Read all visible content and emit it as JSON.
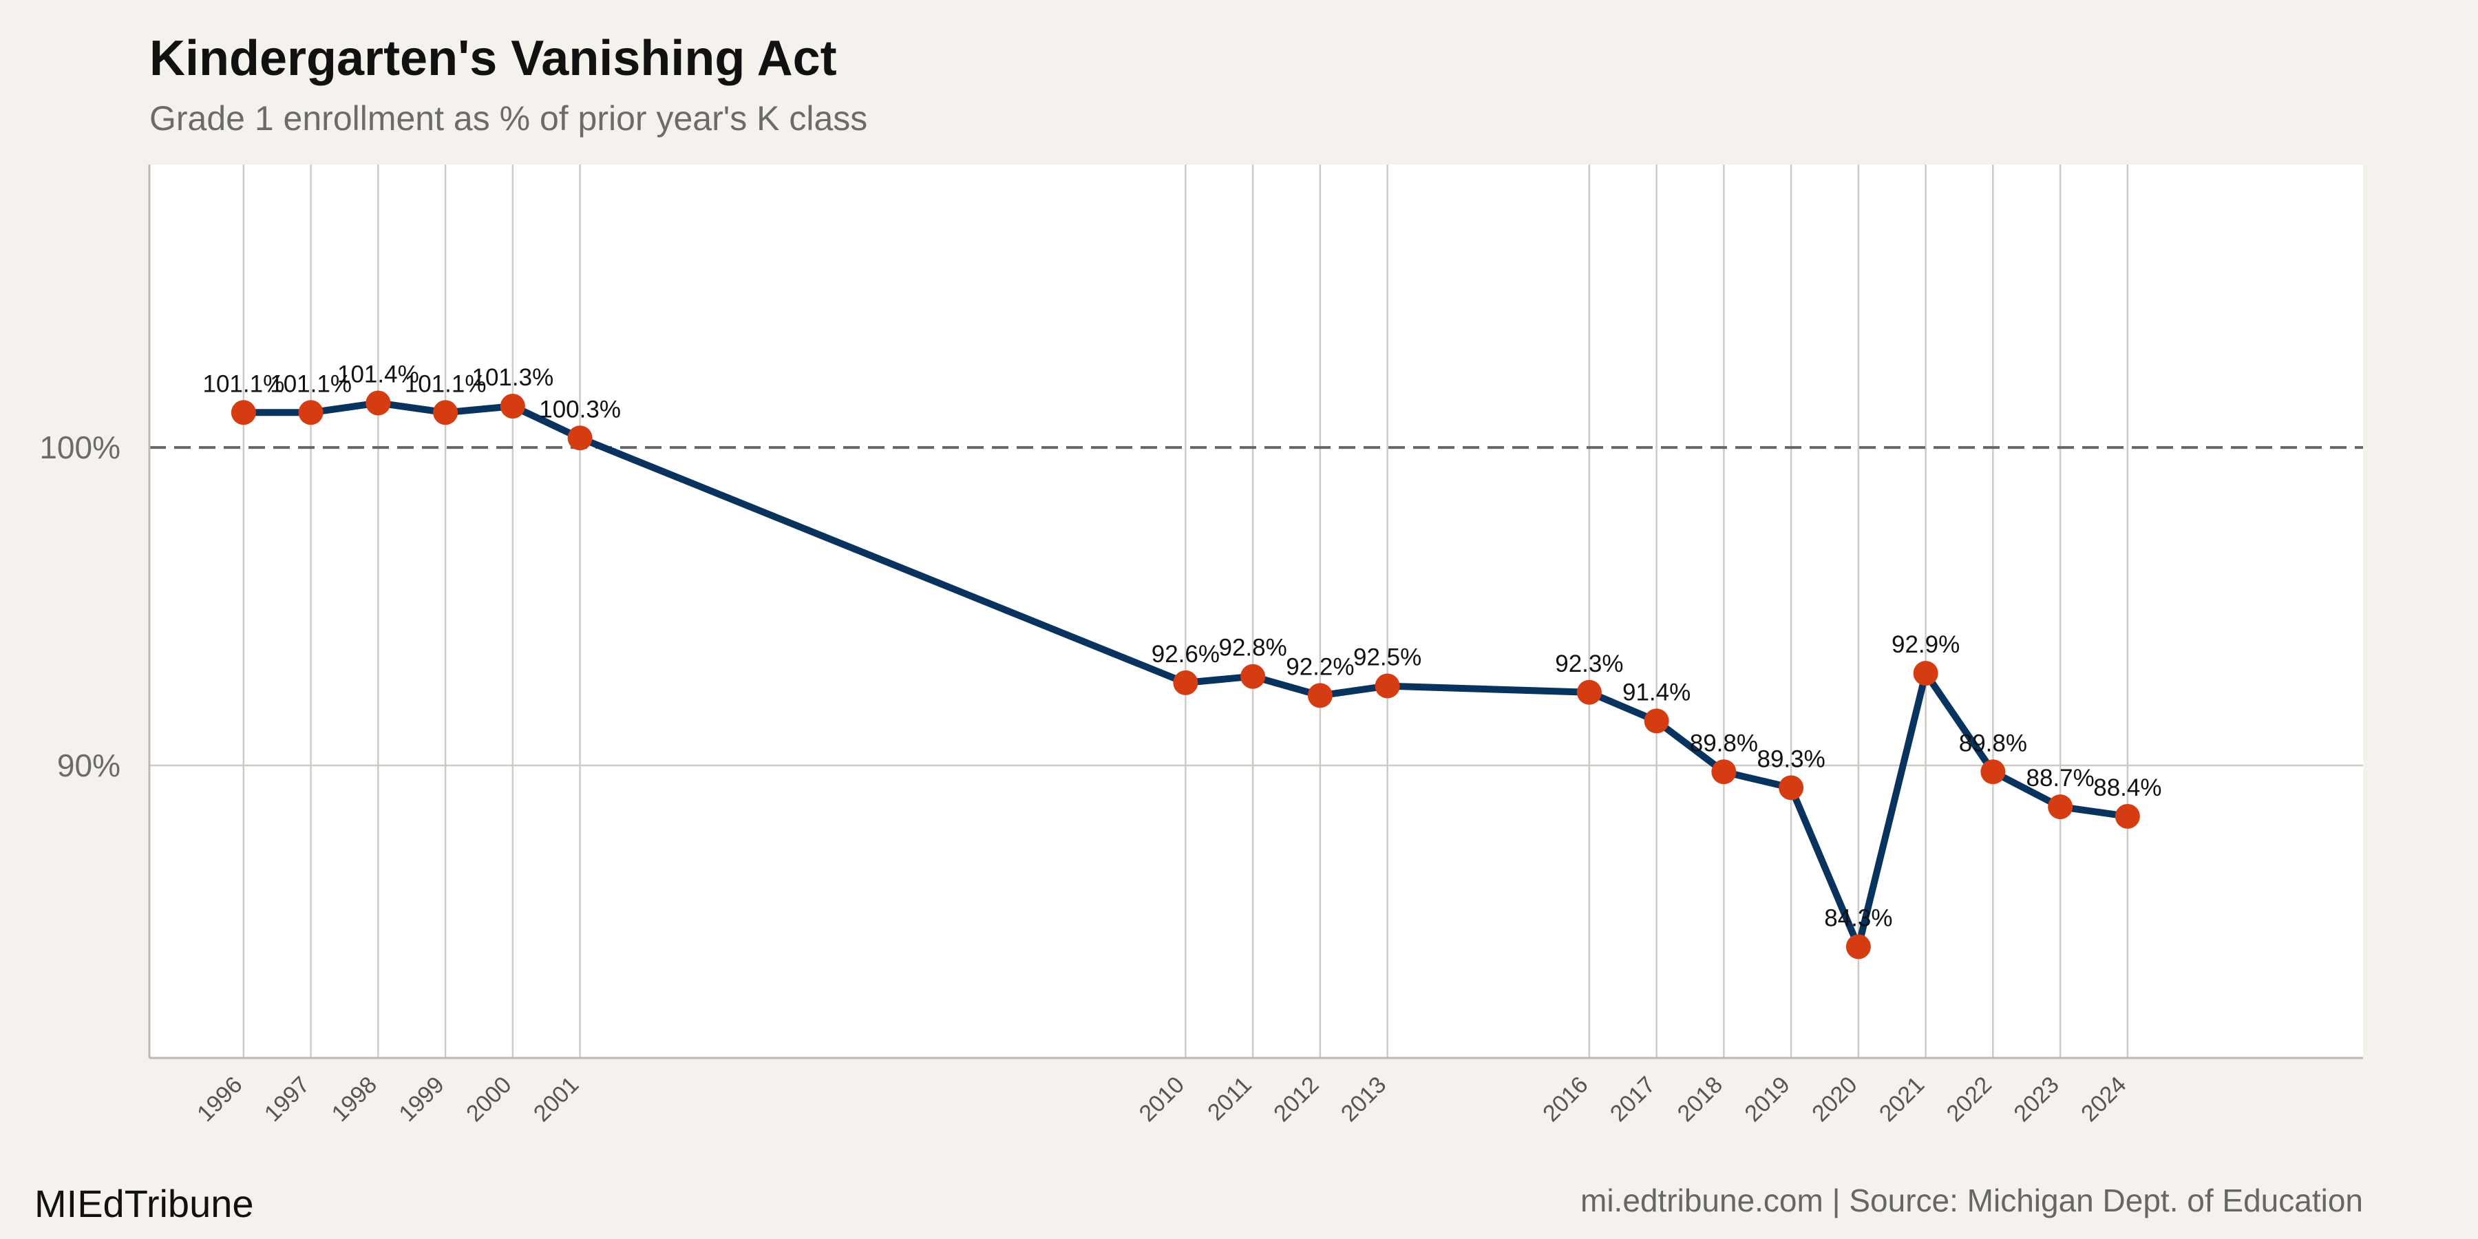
{
  "chart_data": {
    "type": "line",
    "title": "Kindergarten's Vanishing Act",
    "subtitle": "Grade 1 enrollment as % of prior year's K class",
    "xlabel": "",
    "ylabel": "",
    "x": [
      1996,
      1997,
      1998,
      1999,
      2000,
      2001,
      2010,
      2011,
      2012,
      2013,
      2016,
      2017,
      2018,
      2019,
      2020,
      2021,
      2022,
      2023,
      2024
    ],
    "x_tick_labels": [
      "1996",
      "1997",
      "1998",
      "1999",
      "2000",
      "2001",
      "2010",
      "2011",
      "2012",
      "2013",
      "2016",
      "2017",
      "2018",
      "2019",
      "2020",
      "2021",
      "2022",
      "2023",
      "2024"
    ],
    "series": [
      {
        "values": [
          101.1,
          101.1,
          101.4,
          101.1,
          101.3,
          100.3,
          92.6,
          92.8,
          92.2,
          92.5,
          92.3,
          91.4,
          89.8,
          89.3,
          84.3,
          92.9,
          89.8,
          88.7,
          88.4
        ],
        "labels": [
          "101.1%",
          "101.1%",
          "101.4%",
          "101.1%",
          "101.3%",
          "100.3%",
          "92.6%",
          "92.8%",
          "92.2%",
          "92.5%",
          "92.3%",
          "91.4%",
          "89.8%",
          "89.3%",
          "84.3%",
          "92.9%",
          "89.8%",
          "88.7%",
          "88.4%"
        ]
      }
    ],
    "xlim": [
      1994.6,
      2027.5
    ],
    "ylim": [
      80.8,
      108.9
    ],
    "y_ticks": [
      90,
      100
    ],
    "y_tick_labels": [
      "90%",
      "100%"
    ],
    "reference_line": {
      "value": 100,
      "style": "dashed"
    },
    "grid": {
      "vertical_at_data_x": true,
      "horizontal": true
    },
    "colors": {
      "line": "#08335e",
      "marker": "#d63c12",
      "background": "#f5f2ed",
      "plot_background": "#ffffff",
      "grid": "#cfcac4",
      "reference_line": "#666666"
    }
  },
  "footer": {
    "brand": "MIEdTribune",
    "source": "mi.edtribune.com | Source: Michigan Dept. of Education"
  }
}
